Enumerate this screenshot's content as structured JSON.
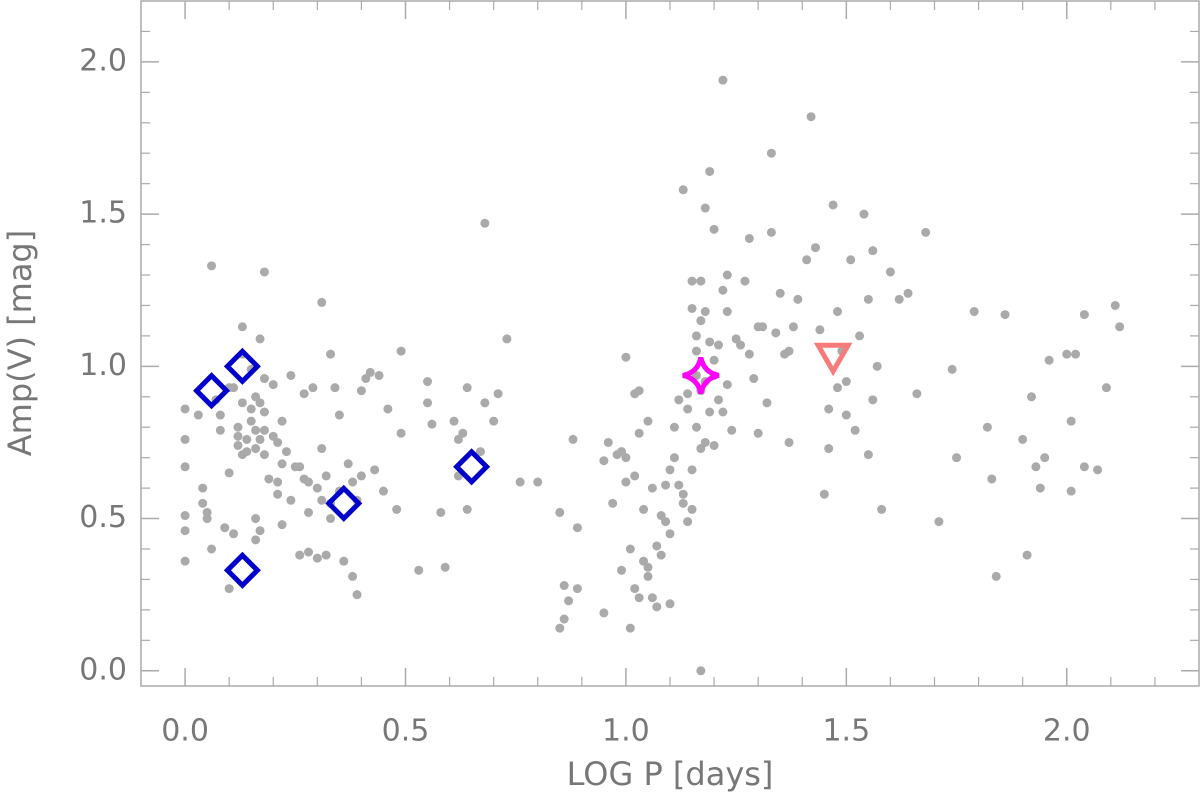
{
  "chart_data": {
    "type": "scatter",
    "xlabel": "LOG P [days]",
    "ylabel": "Amp(V) [mag]",
    "xlim": [
      -0.1,
      2.3
    ],
    "ylim": [
      -0.05,
      2.2
    ],
    "xticks": [
      {
        "value": 0,
        "label": "0.0"
      },
      0.5,
      {
        "value": 1,
        "label": "1.0"
      },
      1.5,
      {
        "value": 2,
        "label": "2.0"
      }
    ],
    "yticks": [
      {
        "value": 0,
        "label": "0.0"
      },
      0.5,
      {
        "value": 1,
        "label": "1.0"
      },
      1.5,
      {
        "value": 2,
        "label": "2.0"
      }
    ],
    "xminorticks": [
      0.1,
      0.2,
      0.3,
      0.4,
      0.6,
      0.7,
      0.8,
      0.9,
      1.1,
      1.2,
      1.3,
      1.4,
      1.6,
      1.7,
      1.8,
      1.9,
      2.1,
      2.2
    ],
    "yminorticks": [
      0.1,
      0.2,
      0.3,
      0.4,
      0.6,
      0.7,
      0.8,
      0.9,
      1.1,
      1.2,
      1.3,
      1.4,
      1.6,
      1.7,
      1.8,
      1.9,
      2.1
    ],
    "axis_color": "#aaaaaa",
    "series": [
      {
        "color": "#aaaaaa",
        "marker": "circle",
        "x": [
          0.0,
          0.0,
          0.0,
          0.0,
          0.0,
          0.0,
          0.03,
          0.04,
          0.04,
          0.05,
          0.05,
          0.06,
          0.06,
          0.07,
          0.08,
          0.08,
          0.09,
          0.1,
          0.1,
          0.1,
          0.11,
          0.11,
          0.12,
          0.12,
          0.12,
          0.13,
          0.13,
          0.13,
          0.13,
          0.14,
          0.14,
          0.15,
          0.15,
          0.15,
          0.16,
          0.16,
          0.16,
          0.16,
          0.16,
          0.17,
          0.17,
          0.17,
          0.17,
          0.18,
          0.18,
          0.18,
          0.18,
          0.18,
          0.19,
          0.2,
          0.2,
          0.21,
          0.21,
          0.21,
          0.22,
          0.22,
          0.22,
          0.23,
          0.24,
          0.24,
          0.25,
          0.26,
          0.26,
          0.27,
          0.27,
          0.28,
          0.28,
          0.28,
          0.29,
          0.3,
          0.3,
          0.31,
          0.31,
          0.31,
          0.32,
          0.32,
          0.33,
          0.33,
          0.33,
          0.34,
          0.35,
          0.35,
          0.36,
          0.37,
          0.38,
          0.38,
          0.39,
          0.39,
          0.4,
          0.4,
          0.41,
          0.42,
          0.43,
          0.44,
          0.45,
          0.46,
          0.48,
          0.49,
          0.49,
          0.53,
          0.55,
          0.55,
          0.56,
          0.58,
          0.59,
          0.61,
          0.62,
          0.62,
          0.63,
          0.64,
          0.64,
          0.67,
          0.68,
          0.68,
          0.7,
          0.71,
          0.73,
          0.76,
          0.8,
          0.85,
          0.85,
          0.86,
          0.86,
          0.87,
          0.88,
          0.89,
          0.89,
          0.95,
          0.95,
          0.96,
          0.97,
          0.98,
          0.99,
          0.99,
          1.0,
          1.0,
          1.0,
          1.01,
          1.01,
          1.02,
          1.02,
          1.02,
          1.03,
          1.03,
          1.03,
          1.04,
          1.04,
          1.05,
          1.05,
          1.05,
          1.06,
          1.06,
          1.07,
          1.07,
          1.08,
          1.08,
          1.09,
          1.09,
          1.1,
          1.1,
          1.1,
          1.11,
          1.11,
          1.12,
          1.12,
          1.13,
          1.13,
          1.13,
          1.14,
          1.14,
          1.14,
          1.15,
          1.15,
          1.15,
          1.15,
          1.16,
          1.16,
          1.16,
          1.16,
          1.17,
          1.17,
          1.17,
          1.17,
          1.17,
          1.18,
          1.18,
          1.18,
          1.18,
          1.19,
          1.19,
          1.19,
          1.2,
          1.2,
          1.2,
          1.2,
          1.21,
          1.21,
          1.22,
          1.22,
          1.22,
          1.23,
          1.23,
          1.23,
          1.24,
          1.25,
          1.26,
          1.27,
          1.28,
          1.28,
          1.29,
          1.3,
          1.3,
          1.31,
          1.32,
          1.33,
          1.33,
          1.34,
          1.35,
          1.36,
          1.37,
          1.37,
          1.38,
          1.39,
          1.41,
          1.42,
          1.43,
          1.44,
          1.45,
          1.46,
          1.46,
          1.47,
          1.48,
          1.48,
          1.49,
          1.5,
          1.5,
          1.51,
          1.52,
          1.53,
          1.54,
          1.55,
          1.55,
          1.56,
          1.56,
          1.57,
          1.58,
          1.6,
          1.62,
          1.64,
          1.66,
          1.68,
          1.71,
          1.74,
          1.75,
          1.79,
          1.82,
          1.83,
          1.84,
          1.86,
          1.9,
          1.91,
          1.92,
          1.93,
          1.94,
          1.95,
          1.96,
          2.0,
          2.01,
          2.01,
          2.02,
          2.04,
          2.04,
          2.07,
          2.09,
          2.11,
          2.12
        ],
        "values": [
          0.86,
          0.76,
          0.67,
          0.51,
          0.46,
          0.36,
          0.84,
          0.6,
          0.55,
          0.52,
          0.5,
          1.33,
          0.4,
          0.89,
          0.84,
          0.79,
          0.47,
          0.65,
          0.93,
          0.27,
          0.45,
          0.93,
          0.8,
          0.77,
          0.74,
          0.88,
          1.04,
          0.71,
          1.13,
          0.76,
          0.72,
          0.99,
          0.86,
          0.82,
          0.9,
          0.79,
          0.73,
          0.5,
          0.43,
          1.09,
          0.88,
          0.76,
          0.46,
          1.31,
          0.96,
          0.85,
          0.79,
          0.71,
          0.63,
          0.77,
          0.94,
          0.75,
          0.62,
          0.58,
          0.82,
          0.48,
          0.68,
          0.72,
          0.97,
          0.56,
          0.67,
          0.38,
          0.67,
          0.91,
          0.63,
          0.39,
          0.52,
          0.62,
          0.93,
          0.6,
          0.37,
          1.21,
          0.73,
          0.56,
          0.38,
          0.64,
          0.55,
          0.5,
          1.04,
          0.93,
          0.84,
          0.59,
          0.36,
          0.68,
          0.31,
          0.62,
          0.56,
          0.25,
          0.92,
          0.64,
          0.96,
          0.98,
          0.66,
          0.97,
          0.59,
          0.86,
          0.53,
          1.05,
          0.78,
          0.33,
          0.95,
          0.88,
          0.81,
          0.52,
          0.34,
          0.82,
          0.76,
          0.64,
          0.78,
          0.93,
          0.53,
          0.72,
          0.88,
          1.47,
          0.82,
          0.91,
          1.09,
          0.62,
          0.62,
          0.52,
          0.14,
          0.28,
          0.17,
          0.23,
          0.76,
          0.47,
          0.27,
          0.69,
          0.19,
          0.75,
          0.55,
          0.71,
          0.72,
          0.33,
          0.7,
          0.62,
          1.03,
          0.4,
          0.14,
          0.27,
          0.64,
          0.91,
          0.24,
          0.92,
          0.78,
          0.53,
          0.36,
          0.34,
          0.31,
          0.82,
          0.6,
          0.24,
          0.21,
          0.41,
          0.51,
          0.38,
          0.49,
          0.61,
          0.22,
          0.45,
          0.66,
          0.7,
          0.8,
          0.61,
          0.89,
          0.58,
          1.58,
          0.55,
          0.91,
          0.49,
          0.86,
          1.28,
          1.19,
          0.66,
          0.53,
          1.05,
          0.97,
          0.8,
          1.1,
          1.28,
          1.15,
          0.0,
          0.92,
          0.73,
          1.52,
          1.18,
          0.95,
          0.75,
          1.64,
          1.08,
          0.85,
          1.45,
          1.02,
          0.97,
          0.74,
          1.07,
          0.89,
          1.94,
          1.25,
          0.85,
          1.3,
          1.18,
          0.94,
          0.79,
          1.09,
          1.07,
          1.28,
          1.42,
          1.04,
          0.96,
          1.13,
          0.78,
          1.13,
          0.88,
          1.7,
          1.44,
          1.11,
          1.24,
          1.04,
          1.05,
          0.75,
          1.13,
          1.22,
          1.35,
          1.82,
          1.39,
          1.12,
          0.58,
          0.86,
          0.73,
          1.53,
          1.18,
          0.93,
          1.05,
          0.84,
          0.95,
          1.35,
          0.79,
          1.1,
          1.5,
          0.71,
          1.22,
          1.38,
          0.89,
          1.0,
          0.53,
          1.31,
          1.22,
          1.24,
          0.91,
          1.44,
          0.49,
          0.99,
          0.7,
          1.18,
          0.8,
          0.63,
          0.31,
          1.17,
          0.76,
          0.38,
          0.9,
          0.67,
          0.6,
          0.7,
          1.02,
          1.04,
          0.59,
          0.82,
          1.04,
          0.67,
          1.17,
          0.66,
          0.93,
          1.2,
          1.13
        ]
      },
      {
        "color": "#0000cc",
        "marker": "diamond",
        "x": [
          0.06,
          0.13,
          0.13,
          0.36,
          0.65
        ],
        "values": [
          0.92,
          1.0,
          0.33,
          0.55,
          0.67
        ]
      },
      {
        "color": "#ff00ff",
        "marker": "star",
        "x": [
          1.17
        ],
        "values": [
          0.97
        ]
      },
      {
        "color": "#f77b7b",
        "marker": "triangle-down",
        "x": [
          1.47
        ],
        "values": [
          1.03
        ]
      }
    ]
  }
}
